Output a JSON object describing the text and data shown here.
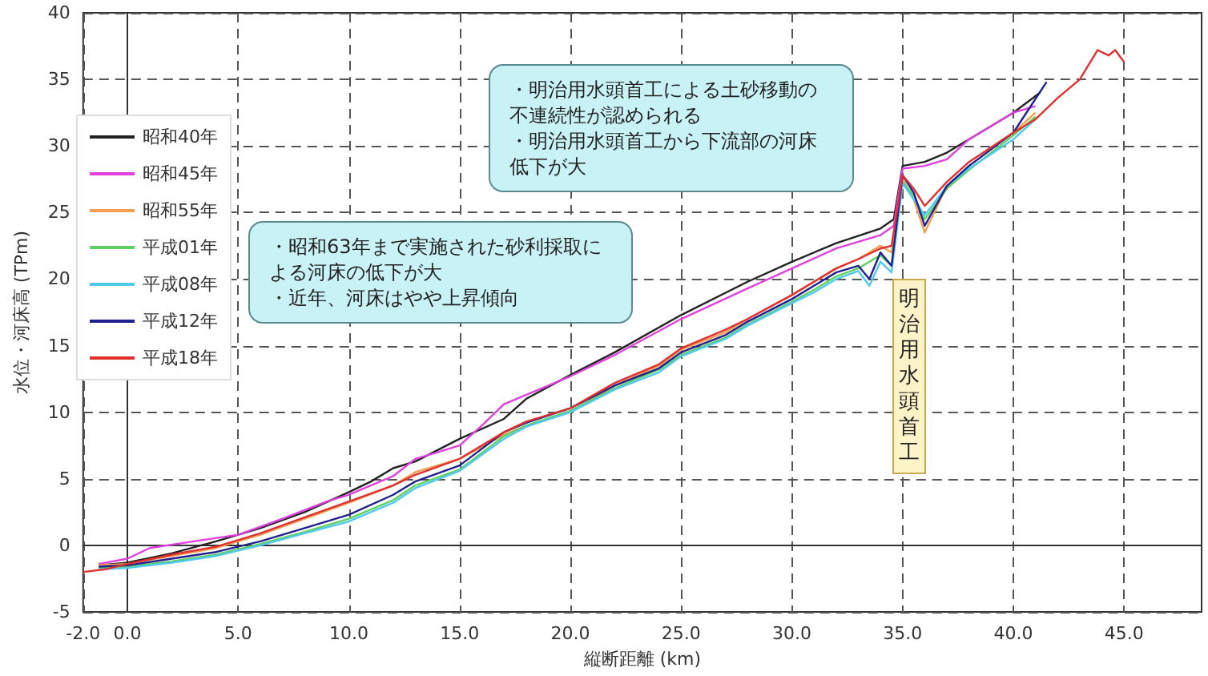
{
  "chart_data": {
    "type": "line",
    "xlabel": "縦断距離 (km)",
    "ylabel": "水位・河床高 (TPm)",
    "xlim": [
      -2,
      48.5
    ],
    "ylim": [
      -5,
      40
    ],
    "xticks": [
      {
        "value": -2,
        "label": "-2.0"
      },
      {
        "value": 0,
        "label": "0.0"
      },
      {
        "value": 5,
        "label": "5.0"
      },
      {
        "value": 10,
        "label": "10.0"
      },
      {
        "value": 15,
        "label": "15.0"
      },
      {
        "value": 20,
        "label": "20.0"
      },
      {
        "value": 25,
        "label": "25.0"
      },
      {
        "value": 30,
        "label": "30.0"
      },
      {
        "value": 35,
        "label": "35.0"
      },
      {
        "value": 40,
        "label": "40.0"
      },
      {
        "value": 45,
        "label": "45.0"
      }
    ],
    "yticks": [
      -5,
      0,
      5,
      10,
      15,
      20,
      25,
      30,
      35,
      40
    ],
    "grid": true,
    "legend": "top left",
    "marker": "none",
    "line_style": "solid",
    "annotations": [
      "・明治用水頭首工による土砂移動の不連続性が認められる",
      "・明治用水頭首工から下流部の河床低下が大",
      "・昭和63年まで実施された砂利採取による河床の低下が大",
      "・近年、河床はやや上昇傾向",
      "明治用水頭首工"
    ],
    "series": [
      {
        "name": "昭和40年",
        "color": "#222222",
        "x": [
          -1.3,
          0,
          2,
          4,
          6,
          8,
          10,
          11,
          12,
          13,
          15,
          17,
          18,
          20,
          22,
          25,
          28,
          30,
          32,
          34,
          34.6,
          35,
          36,
          37,
          38,
          40,
          41.2
        ],
        "values": [
          -1.5,
          -1.3,
          -0.6,
          0.3,
          1.3,
          2.5,
          4,
          4.8,
          5.8,
          6.3,
          8,
          9.5,
          11,
          12.8,
          14.5,
          17.3,
          19.8,
          21.3,
          22.7,
          23.8,
          24.5,
          28.5,
          28.8,
          29.5,
          30.5,
          32.5,
          34
        ]
      },
      {
        "name": "昭和45年",
        "color": "#e040e0",
        "x": [
          -1.3,
          0,
          1,
          3,
          5,
          7,
          9,
          10,
          12,
          13,
          14,
          15,
          16,
          17,
          20,
          22,
          25,
          28,
          30,
          32,
          34,
          34.6,
          35,
          36,
          37,
          38,
          40,
          41
        ],
        "values": [
          -1.4,
          -1,
          -0.2,
          0.3,
          0.8,
          2,
          3.3,
          3.8,
          5.2,
          6.5,
          7,
          7.5,
          9,
          10.6,
          12.7,
          14.3,
          17,
          19.3,
          20.8,
          22.3,
          23.3,
          24,
          28.3,
          28.5,
          29,
          30.5,
          32.5,
          33
        ]
      },
      {
        "name": "昭和55年",
        "color": "#f0a050",
        "x": [
          -1.3,
          0,
          2,
          4,
          6,
          8,
          10,
          12,
          13,
          15,
          17,
          18,
          20,
          22,
          24,
          25,
          27,
          28,
          30,
          31,
          32,
          33,
          34,
          34.5,
          35,
          35.5,
          36,
          37,
          38,
          40,
          41
        ],
        "values": [
          -1.5,
          -1.4,
          -0.8,
          -0.2,
          0.8,
          2,
          3.2,
          4.5,
          5.5,
          6.5,
          8.3,
          9,
          10,
          12,
          13.5,
          14.7,
          16,
          17,
          18.8,
          19.8,
          20.8,
          21.5,
          22.5,
          22,
          27.5,
          26,
          23.5,
          27,
          28.5,
          31,
          32.5
        ]
      },
      {
        "name": "平成01年",
        "color": "#60d060",
        "x": [
          -1.3,
          0,
          2,
          4,
          6,
          8,
          10,
          12,
          13,
          15,
          17,
          18,
          20,
          22,
          24,
          25,
          27,
          28,
          30,
          31,
          32,
          33,
          34,
          34.5,
          35,
          35.5,
          36,
          37,
          38,
          40,
          41
        ],
        "values": [
          -1.7,
          -1.6,
          -1.2,
          -0.7,
          0.1,
          1,
          2,
          3.4,
          4.5,
          5.7,
          8.2,
          9,
          10.1,
          11.8,
          13.2,
          14.3,
          15.6,
          16.6,
          18.3,
          19.2,
          20.2,
          20.8,
          21.8,
          21,
          27.3,
          26.3,
          24.5,
          26.8,
          28.2,
          30.8,
          32.2
        ]
      },
      {
        "name": "平成08年",
        "color": "#50c8f0",
        "x": [
          -1.3,
          0,
          2,
          4,
          6,
          8,
          10,
          12,
          13,
          15,
          17,
          18,
          20,
          22,
          24,
          25,
          27,
          28,
          30,
          31,
          32,
          33,
          33.5,
          34,
          34.5,
          35,
          35.5,
          36,
          37,
          38,
          40,
          41
        ],
        "values": [
          -1.8,
          -1.7,
          -1.3,
          -0.8,
          0,
          0.9,
          1.8,
          3.2,
          4.3,
          5.6,
          8,
          8.9,
          10,
          11.7,
          13,
          14.2,
          15.5,
          16.5,
          18.2,
          19,
          20,
          20.6,
          19.5,
          21.3,
          20.5,
          27.2,
          26,
          24.8,
          27,
          28.3,
          30.5,
          32
        ]
      },
      {
        "name": "平成12年",
        "color": "#202090",
        "x": [
          -1.3,
          0,
          2,
          4,
          6,
          8,
          10,
          12,
          13,
          15,
          17,
          18,
          20,
          22,
          24,
          25,
          27,
          28,
          30,
          31,
          32,
          33,
          33.5,
          34,
          34.5,
          35,
          35.5,
          36,
          37,
          38,
          40,
          41.5
        ],
        "values": [
          -1.6,
          -1.5,
          -1,
          -0.5,
          0.3,
          1.3,
          2.3,
          3.8,
          4.8,
          6,
          8.5,
          9.2,
          10.3,
          12,
          13.3,
          14.5,
          15.8,
          16.8,
          18.5,
          19.5,
          20.5,
          21,
          20,
          22,
          21,
          27.8,
          26.5,
          24,
          27,
          28.5,
          31,
          34.8
        ]
      },
      {
        "name": "平成18年",
        "color": "#e03030",
        "x": [
          -2,
          -1,
          0,
          2,
          4,
          6,
          8,
          10,
          12,
          13,
          15,
          17,
          18,
          20,
          22,
          24,
          25,
          27,
          28,
          30,
          31,
          32,
          33,
          34,
          34.5,
          35,
          35.5,
          36,
          37,
          38,
          40,
          41,
          42,
          43,
          43.8,
          44.3,
          44.6,
          45
        ],
        "values": [
          -2,
          -1.8,
          -1.4,
          -0.7,
          -0.1,
          0.9,
          2.1,
          3.3,
          4.5,
          5.3,
          6.5,
          8.5,
          9.3,
          10.3,
          12.2,
          13.6,
          14.8,
          16.2,
          17,
          18.8,
          19.8,
          20.8,
          21.5,
          22.3,
          22.5,
          27.8,
          26.8,
          25.5,
          27.3,
          28.8,
          31,
          32,
          33.6,
          35,
          37.2,
          36.8,
          37.2,
          36.3
        ]
      }
    ]
  }
}
